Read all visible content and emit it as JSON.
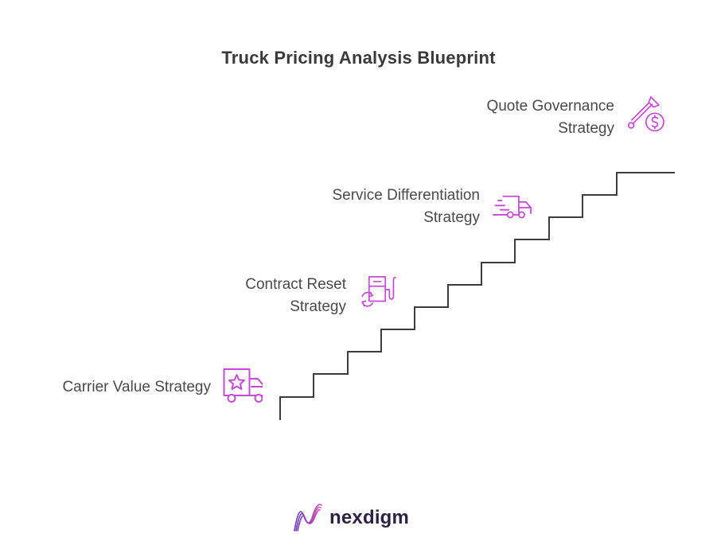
{
  "title": "Truck Pricing Analysis Blueprint",
  "steps": [
    {
      "line1": "Carrier Value Strategy",
      "line2": "",
      "icon": "truck-star-icon"
    },
    {
      "line1": "Contract Reset",
      "line2": "Strategy",
      "icon": "fuel-pump-refresh-icon"
    },
    {
      "line1": "Service Differentiation",
      "line2": "Strategy",
      "icon": "fast-truck-icon"
    },
    {
      "line1": "Quote Governance",
      "line2": "Strategy",
      "icon": "gavel-dollar-icon"
    }
  ],
  "brand": {
    "name": "nexdigm",
    "logo_icon": "nexdigm-wave-icon"
  },
  "colors": {
    "accent": "#c04ed1",
    "line": "#3d3d3d",
    "text": "#4a4a4a",
    "brand": "#2b2340"
  }
}
